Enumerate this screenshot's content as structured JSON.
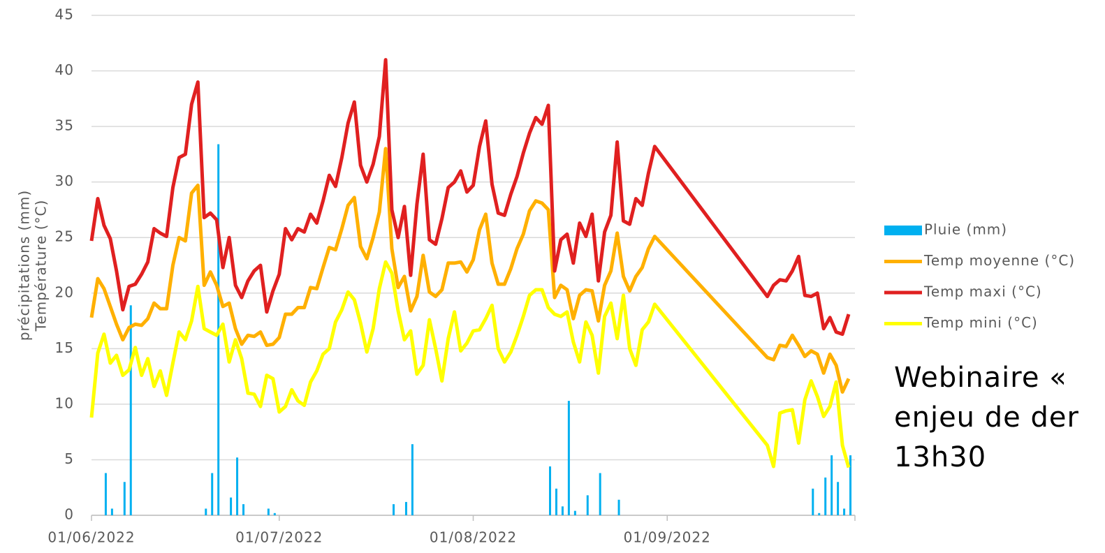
{
  "chart_data": {
    "type": "line",
    "y_label": [
      "précipitations (mm)",
      "Température (°C)"
    ],
    "annotation": [
      "Webinaire «",
      "enjeu de der",
      "13h30"
    ],
    "x": [
      "01/06/2022",
      "02/06/2022",
      "03/06/2022",
      "04/06/2022",
      "05/06/2022",
      "06/06/2022",
      "07/06/2022",
      "08/06/2022",
      "09/06/2022",
      "10/06/2022",
      "11/06/2022",
      "12/06/2022",
      "13/06/2022",
      "14/06/2022",
      "15/06/2022",
      "16/06/2022",
      "17/06/2022",
      "18/06/2022",
      "19/06/2022",
      "20/06/2022",
      "21/06/2022",
      "22/06/2022",
      "23/06/2022",
      "24/06/2022",
      "25/06/2022",
      "26/06/2022",
      "27/06/2022",
      "28/06/2022",
      "29/06/2022",
      "30/06/2022",
      "01/07/2022",
      "02/07/2022",
      "03/07/2022",
      "04/07/2022",
      "05/07/2022",
      "06/07/2022",
      "07/07/2022",
      "08/07/2022",
      "09/07/2022",
      "10/07/2022",
      "11/07/2022",
      "12/07/2022",
      "13/07/2022",
      "14/07/2022",
      "15/07/2022",
      "16/07/2022",
      "17/07/2022",
      "18/07/2022",
      "19/07/2022",
      "20/07/2022",
      "21/07/2022",
      "22/07/2022",
      "23/07/2022",
      "24/07/2022",
      "25/07/2022",
      "26/07/2022",
      "27/07/2022",
      "28/07/2022",
      "29/07/2022",
      "30/07/2022",
      "31/07/2022",
      "01/08/2022",
      "02/08/2022",
      "03/08/2022",
      "04/08/2022",
      "05/08/2022",
      "06/08/2022",
      "07/08/2022",
      "08/08/2022",
      "09/08/2022",
      "10/08/2022",
      "11/08/2022",
      "12/08/2022",
      "13/08/2022",
      "14/08/2022",
      "15/08/2022",
      "16/08/2022",
      "17/08/2022",
      "18/08/2022",
      "19/08/2022",
      "20/08/2022",
      "21/08/2022",
      "22/08/2022",
      "23/08/2022",
      "24/08/2022",
      "25/08/2022",
      "26/08/2022",
      "27/08/2022",
      "28/08/2022",
      "29/08/2022",
      "30/08/2022",
      "17/09/2022",
      "18/09/2022",
      "19/09/2022",
      "20/09/2022",
      "21/09/2022",
      "22/09/2022",
      "23/09/2022",
      "24/09/2022",
      "25/09/2022",
      "26/09/2022",
      "27/09/2022",
      "28/09/2022",
      "29/09/2022",
      "30/09/2022"
    ],
    "series": [
      {
        "name": "Pluie (mm)",
        "kind": "bar",
        "color": "#00b0f0",
        "values": [
          0,
          0,
          3.8,
          0.6,
          0,
          3,
          18.9,
          0,
          0,
          0,
          0,
          0,
          0,
          0,
          0,
          0,
          0,
          0,
          0.6,
          3.8,
          33.4,
          0,
          1.6,
          5.2,
          1,
          0,
          0,
          0,
          0.6,
          0.2,
          0,
          0,
          0,
          0,
          0,
          0,
          0,
          0,
          0,
          0,
          0,
          0,
          0,
          0,
          0,
          0,
          0,
          0,
          1,
          0,
          1.2,
          6.4,
          0,
          0,
          0,
          0,
          0,
          0,
          0,
          0,
          0,
          0,
          0,
          0,
          0,
          0,
          0,
          0,
          0,
          0,
          0,
          0,
          0,
          4.4,
          2.4,
          0.8,
          10.3,
          0.4,
          0,
          1.8,
          0,
          3.8,
          0,
          0,
          1.4,
          0,
          0,
          0,
          0,
          0,
          0,
          0,
          0,
          0,
          0,
          0,
          0,
          0,
          2.4,
          0.2,
          3.4,
          5.4,
          3,
          0.6,
          5.4
        ]
      },
      {
        "name": "Temp moyenne (°C)",
        "kind": "line",
        "color": "#ffb000",
        "values": [
          17.8,
          21.3,
          20.4,
          18.8,
          17.2,
          15.8,
          16.9,
          17.2,
          17.1,
          17.7,
          19.1,
          18.6,
          18.6,
          22.5,
          25,
          24.7,
          29,
          29.7,
          20.7,
          21.9,
          20.7,
          18.8,
          19.1,
          16.8,
          15.4,
          16.2,
          16.1,
          16.5,
          15.3,
          15.4,
          16,
          18.1,
          18.1,
          18.7,
          18.7,
          20.5,
          20.4,
          22.3,
          24.1,
          23.9,
          25.8,
          27.9,
          28.6,
          24.2,
          23.1,
          25,
          27.3,
          33,
          24,
          20.5,
          21.5,
          18.4,
          19.7,
          23.4,
          20.1,
          19.7,
          20.3,
          22.7,
          22.7,
          22.8,
          21.9,
          23,
          25.7,
          27.1,
          22.7,
          20.8,
          20.8,
          22.2,
          24,
          25.3,
          27.4,
          28.3,
          28.1,
          27.5,
          19.6,
          20.7,
          20.3,
          17.7,
          19.8,
          20.3,
          20.2,
          17.5,
          20.7,
          22,
          25.4,
          21.5,
          20.2,
          21.5,
          22.3,
          24,
          25.1,
          14.2,
          14,
          15.3,
          15.2,
          16.2,
          15.3,
          14.3,
          14.8,
          14.5,
          12.8,
          14.5,
          13.5,
          11.1,
          12.3
        ]
      },
      {
        "name": "Temp maxi (°C)",
        "kind": "line",
        "color": "#e02020",
        "values": [
          24.7,
          28.5,
          26.1,
          24.9,
          22,
          18.5,
          20.6,
          20.8,
          21.7,
          22.8,
          25.8,
          25.4,
          25.1,
          29.5,
          32.2,
          32.5,
          37,
          39,
          26.8,
          27.2,
          26.6,
          22.3,
          25,
          20.7,
          19.6,
          21.1,
          22,
          22.5,
          18.3,
          20.2,
          21.7,
          25.8,
          24.8,
          25.8,
          25.5,
          27.1,
          26.3,
          28.3,
          30.6,
          29.6,
          32.2,
          35.3,
          37.2,
          31.5,
          30,
          31.6,
          34.1,
          41,
          27.5,
          25,
          27.8,
          21.6,
          28,
          32.5,
          24.8,
          24.4,
          26.7,
          29.5,
          30,
          31,
          29.1,
          29.7,
          33.2,
          35.5,
          29.8,
          27.2,
          27,
          28.9,
          30.5,
          32.6,
          34.4,
          35.8,
          35.2,
          36.9,
          22,
          24.8,
          25.3,
          22.7,
          26.3,
          25.1,
          27.1,
          21.1,
          25.5,
          27,
          33.6,
          26.5,
          26.2,
          28.5,
          27.9,
          30.8,
          33.2,
          19.7,
          20.7,
          21.2,
          21.1,
          22,
          23.3,
          19.8,
          19.7,
          20,
          16.8,
          17.8,
          16.5,
          16.3,
          18.1
        ]
      },
      {
        "name": "Temp mini (°C)",
        "kind": "line",
        "color": "#ffff00",
        "values": [
          8.8,
          14.6,
          16.3,
          13.7,
          14.4,
          12.6,
          13.1,
          15.1,
          12.6,
          14.1,
          11.6,
          13,
          10.8,
          13.7,
          16.5,
          15.8,
          17.5,
          20.6,
          16.8,
          16.5,
          16.2,
          17.2,
          13.8,
          15.8,
          14.1,
          11,
          10.9,
          9.8,
          12.6,
          12.3,
          9.3,
          9.8,
          11.3,
          10.3,
          9.9,
          12,
          13,
          14.5,
          15,
          17.4,
          18.5,
          20.1,
          19.4,
          17.3,
          14.7,
          16.8,
          20.4,
          22.8,
          21.8,
          18.4,
          15.8,
          16.6,
          12.7,
          13.5,
          17.6,
          15,
          12.1,
          15.9,
          18.3,
          14.8,
          15.5,
          16.6,
          16.7,
          17.7,
          18.9,
          15,
          13.8,
          14.7,
          16.2,
          17.9,
          19.8,
          20.3,
          20.3,
          18.7,
          18.1,
          17.9,
          18.3,
          15.6,
          13.8,
          17.4,
          16.2,
          12.8,
          17.9,
          19.1,
          15.9,
          19.8,
          15,
          13.5,
          16.7,
          17.4,
          19,
          6.3,
          4.4,
          9.2,
          9.4,
          9.5,
          6.5,
          10.4,
          12.1,
          10.7,
          8.9,
          9.8,
          12,
          6.3,
          4.3
        ]
      }
    ],
    "xlim": [
      "01/06/2022",
      "01/10/2022"
    ],
    "xticks": [
      "01/06/2022",
      "01/07/2022",
      "01/08/2022",
      "01/09/2022"
    ],
    "ylim": [
      0,
      45
    ],
    "yticks": [
      0,
      5,
      10,
      15,
      20,
      25,
      30,
      35,
      40,
      45
    ],
    "grid": true,
    "legend": "right"
  }
}
